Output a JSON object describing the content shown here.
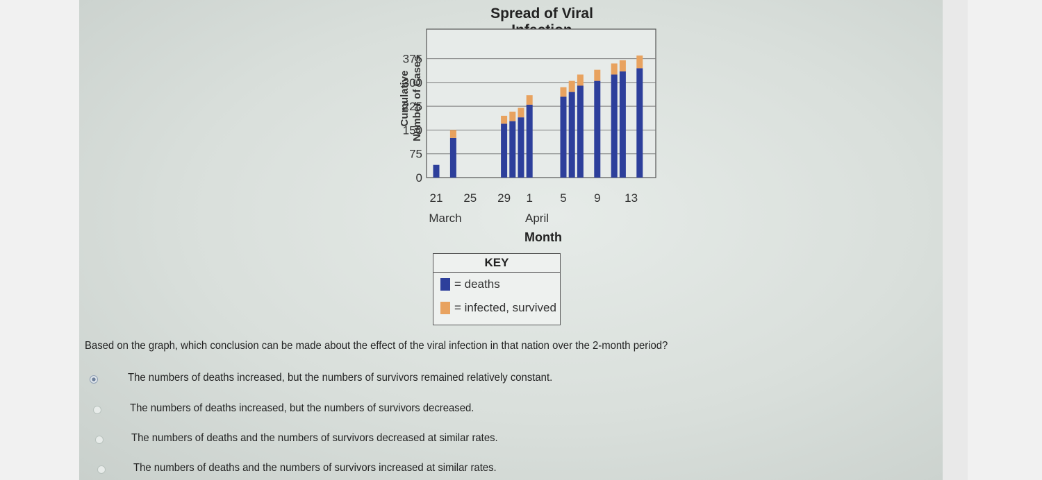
{
  "chart_data": {
    "type": "bar",
    "stacked": true,
    "title": "Spread of Viral Infection",
    "ylabel": "Cumulative Number of Cases",
    "xlabel": "Month",
    "ylim": [
      0,
      400
    ],
    "yticks": [
      0,
      75,
      150,
      225,
      300,
      375
    ],
    "xtick_labels": [
      "21",
      "25",
      "29",
      "1",
      "5",
      "9",
      "13"
    ],
    "month_labels": [
      "March",
      "April"
    ],
    "grid": true,
    "x_dates": [
      "Mar 21",
      "Mar 23",
      "Mar 29",
      "Mar 30",
      "Mar 31",
      "Apr 1",
      "Apr 5",
      "Apr 6",
      "Apr 7",
      "Apr 9",
      "Apr 11",
      "Apr 12",
      "Apr 14"
    ],
    "series": [
      {
        "name": "deaths",
        "color": "#2d3f9b",
        "values": [
          40,
          125,
          170,
          178,
          190,
          230,
          255,
          270,
          290,
          305,
          325,
          335,
          345
        ]
      },
      {
        "name": "infected, survived",
        "color": "#e8a25f",
        "values": [
          0,
          25,
          25,
          30,
          30,
          30,
          30,
          35,
          35,
          35,
          35,
          35,
          40
        ]
      }
    ]
  },
  "key": {
    "title": "KEY",
    "deaths_label": "= deaths",
    "survived_label": "= infected, survived",
    "deaths_color": "#2d3f9b",
    "survived_color": "#e8a25f"
  },
  "question": "Based on the graph, which conclusion can be made about the effect of the viral infection in that nation over the 2-month period?",
  "options": [
    {
      "label": "The numbers of deaths increased, but the numbers of survivors remained relatively constant.",
      "selected": true
    },
    {
      "label": "The numbers of deaths increased, but the numbers of survivors decreased.",
      "selected": false
    },
    {
      "label": "The numbers of deaths and the numbers of survivors decreased at similar rates.",
      "selected": false
    },
    {
      "label": "The numbers of deaths and the numbers of survivors increased at similar rates.",
      "selected": false
    }
  ]
}
